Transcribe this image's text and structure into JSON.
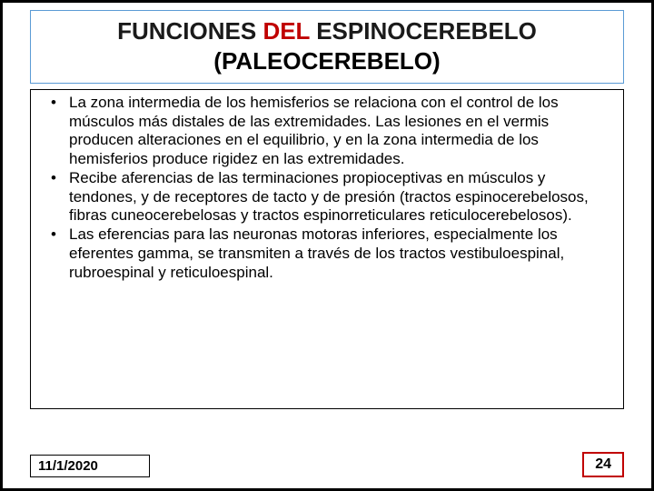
{
  "title": {
    "line1_prefix": "FUNCIONES ",
    "line1_accent": "DEL",
    "line1_suffix": " ESPINOCEREBELO",
    "line2": "(PALEOCEREBELO)"
  },
  "bullets": [
    "La zona intermedia de los hemisferios se relaciona con el control de los músculos más distales de las extremidades. Las lesiones en el vermis producen alteraciones en el equilibrio, y en la zona intermedia de los hemisferios produce rigidez en las extremidades.",
    "Recibe aferencias de las terminaciones propioceptivas en músculos y tendones, y de receptores de tacto y de presión (tractos espinocerebelosos, fibras cuneocerebelosas y tractos espinorreticulares reticulocerebelosos).",
    "Las eferencias para las neuronas motoras inferiores, especialmente los eferentes gamma, se transmiten a través de los tractos vestibuloespinal, rubroespinal y reticuloespinal."
  ],
  "footer": {
    "date": "11/1/2020",
    "page": "24"
  },
  "colors": {
    "accent_red": "#c00000",
    "title_border": "#5b9bd5",
    "text": "#000000",
    "frame": "#000000"
  }
}
